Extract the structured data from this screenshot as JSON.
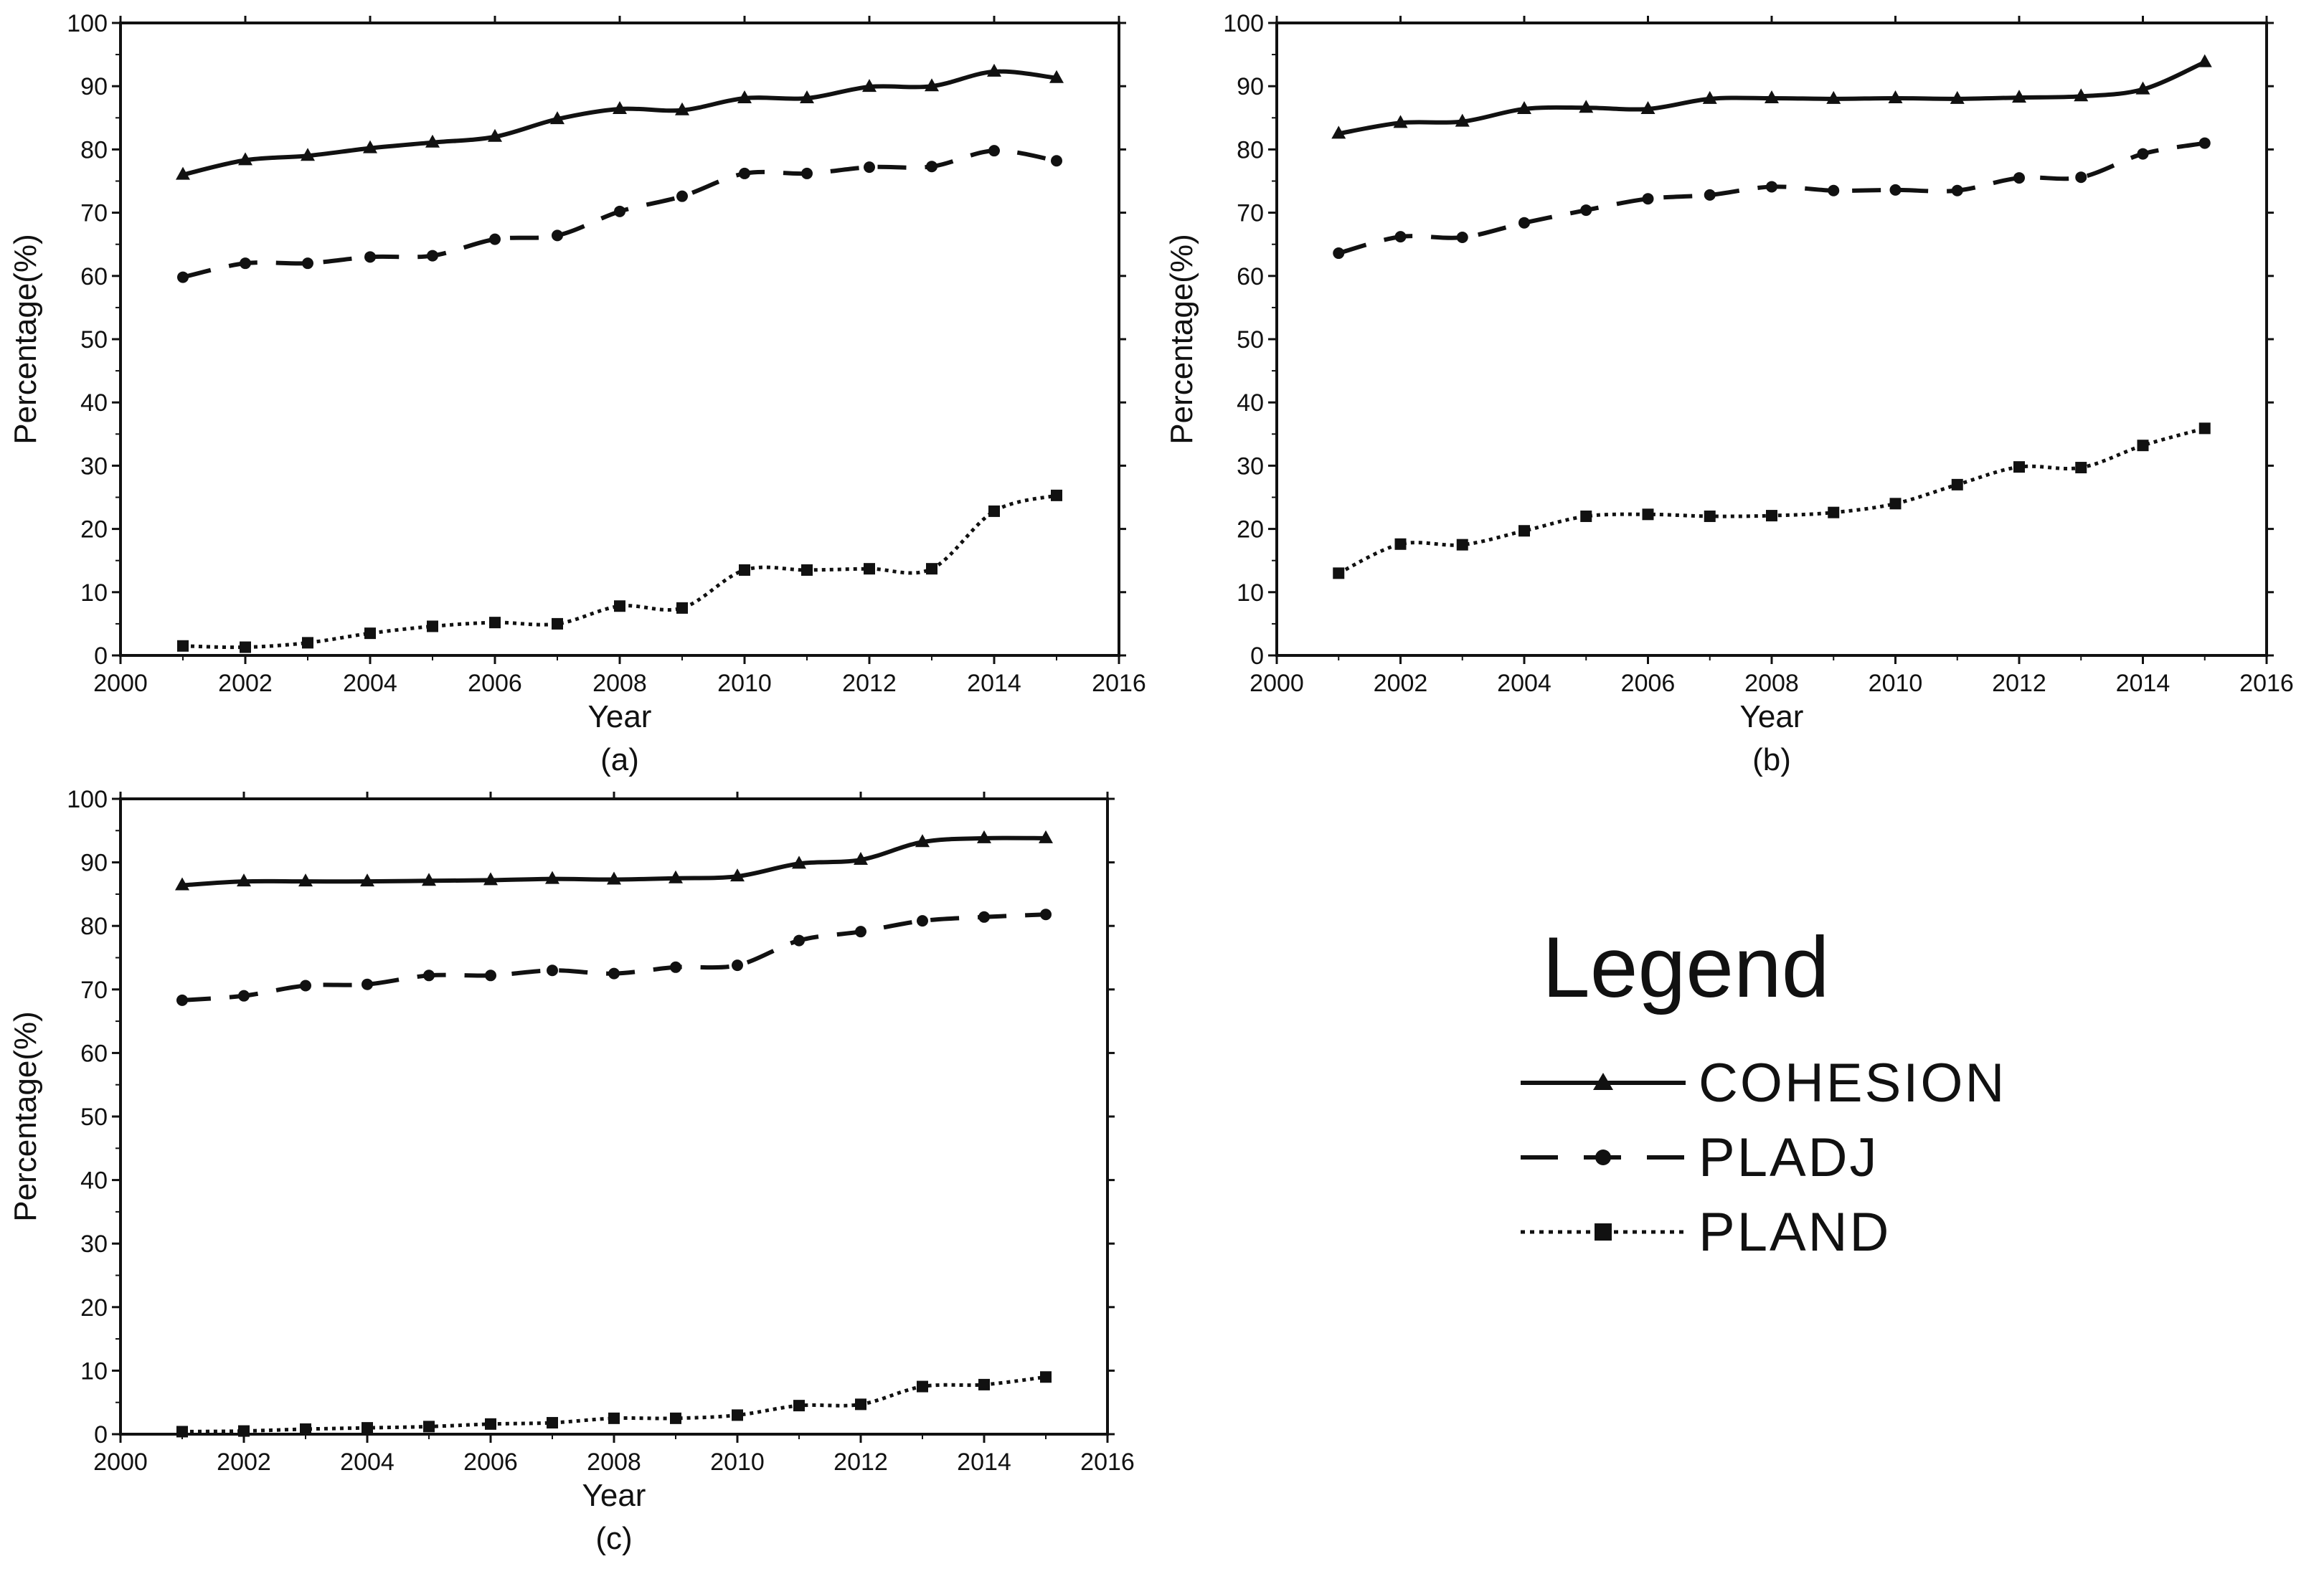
{
  "chart_data": [
    {
      "type": "line",
      "panel_label": "(a)",
      "xlabel": "Year",
      "ylabel": "Percentage(%)",
      "xlim": [
        2000,
        2016
      ],
      "ylim": [
        0,
        100
      ],
      "xticks": [
        "2000",
        "2002",
        "2004",
        "2006",
        "2008",
        "2010",
        "2012",
        "2014",
        "2016"
      ],
      "yticks": [
        "0",
        "10",
        "20",
        "30",
        "40",
        "50",
        "60",
        "70",
        "80",
        "90",
        "100"
      ],
      "x": [
        2001,
        2002,
        2003,
        2004,
        2005,
        2006,
        2007,
        2008,
        2009,
        2010,
        2011,
        2012,
        2013,
        2014,
        2015
      ],
      "series": [
        {
          "name": "COHESION",
          "values": [
            76.0,
            78.3,
            79.0,
            80.2,
            81.1,
            82.0,
            84.8,
            86.4,
            86.2,
            88.1,
            88.1,
            89.9,
            90.0,
            92.3,
            91.3
          ]
        },
        {
          "name": "PLADJ",
          "values": [
            59.8,
            62.0,
            62.0,
            63.0,
            63.2,
            65.8,
            66.4,
            70.2,
            72.6,
            76.2,
            76.2,
            77.2,
            77.3,
            79.8,
            78.2
          ]
        },
        {
          "name": "PLAND",
          "values": [
            1.5,
            1.3,
            2.0,
            3.5,
            4.6,
            5.2,
            5.0,
            7.8,
            7.5,
            13.5,
            13.5,
            13.7,
            13.7,
            22.8,
            25.3
          ]
        }
      ]
    },
    {
      "type": "line",
      "panel_label": "(b)",
      "xlabel": "Year",
      "ylabel": "Percentage(%)",
      "xlim": [
        2000,
        2016
      ],
      "ylim": [
        0,
        100
      ],
      "xticks": [
        "2000",
        "2002",
        "2004",
        "2006",
        "2008",
        "2010",
        "2012",
        "2014",
        "2016"
      ],
      "yticks": [
        "0",
        "10",
        "20",
        "30",
        "40",
        "50",
        "60",
        "70",
        "80",
        "90",
        "100"
      ],
      "x": [
        2001,
        2002,
        2003,
        2004,
        2005,
        2006,
        2007,
        2008,
        2009,
        2010,
        2011,
        2012,
        2013,
        2014,
        2015
      ],
      "series": [
        {
          "name": "COHESION",
          "values": [
            82.5,
            84.2,
            84.4,
            86.4,
            86.6,
            86.4,
            88.0,
            88.1,
            88.0,
            88.1,
            88.0,
            88.2,
            88.4,
            89.5,
            93.8
          ]
        },
        {
          "name": "PLADJ",
          "values": [
            63.6,
            66.2,
            66.1,
            68.4,
            70.4,
            72.2,
            72.8,
            74.1,
            73.5,
            73.6,
            73.5,
            75.5,
            75.6,
            79.3,
            81.0
          ]
        },
        {
          "name": "PLAND",
          "values": [
            13.0,
            17.6,
            17.5,
            19.7,
            22.0,
            22.3,
            22.0,
            22.1,
            22.6,
            24.0,
            27.0,
            29.8,
            29.7,
            33.2,
            35.9
          ]
        }
      ]
    },
    {
      "type": "line",
      "panel_label": "(c)",
      "xlabel": "Year",
      "ylabel": "Percentage(%)",
      "xlim": [
        2000,
        2016
      ],
      "ylim": [
        0,
        100
      ],
      "xticks": [
        "2000",
        "2002",
        "2004",
        "2006",
        "2008",
        "2010",
        "2012",
        "2014",
        "2016"
      ],
      "yticks": [
        "0",
        "10",
        "20",
        "30",
        "40",
        "50",
        "60",
        "70",
        "80",
        "90",
        "100"
      ],
      "x": [
        2001,
        2002,
        2003,
        2004,
        2005,
        2006,
        2007,
        2008,
        2009,
        2010,
        2011,
        2012,
        2013,
        2014,
        2015
      ],
      "series": [
        {
          "name": "COHESION",
          "values": [
            86.4,
            87.0,
            87.0,
            87.0,
            87.1,
            87.2,
            87.4,
            87.3,
            87.5,
            87.8,
            89.8,
            90.4,
            93.2,
            93.8,
            93.8
          ]
        },
        {
          "name": "PLADJ",
          "values": [
            68.3,
            69.0,
            70.6,
            70.8,
            72.2,
            72.2,
            73.0,
            72.5,
            73.5,
            73.8,
            77.7,
            79.1,
            80.8,
            81.4,
            81.8
          ]
        },
        {
          "name": "PLAND",
          "values": [
            0.4,
            0.5,
            0.8,
            1.0,
            1.2,
            1.6,
            1.8,
            2.5,
            2.5,
            3.0,
            4.5,
            4.7,
            7.5,
            7.8,
            9.0
          ]
        }
      ]
    }
  ],
  "legend": {
    "title": "Legend",
    "items": [
      {
        "label": "COHESION",
        "marker": "triangle",
        "dash": "solid"
      },
      {
        "label": "PLADJ",
        "marker": "circle",
        "dash": "dashed"
      },
      {
        "label": "PLAND",
        "marker": "square",
        "dash": "dotted"
      }
    ]
  }
}
